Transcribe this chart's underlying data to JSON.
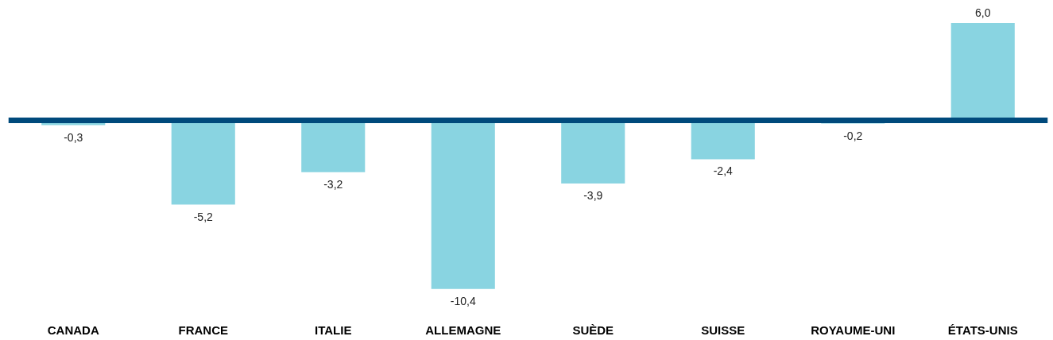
{
  "chart_data": {
    "type": "bar",
    "categories": [
      "CANADA",
      "FRANCE",
      "ITALIE",
      "ALLEMAGNE",
      "SUÈDE",
      "SUISSE",
      "ROYAUME-UNI",
      "ÉTATS-UNIS"
    ],
    "values": [
      -0.3,
      -5.2,
      -3.2,
      -10.4,
      -3.9,
      -2.4,
      -0.2,
      6.0
    ],
    "value_labels": [
      "-0,3",
      "-5,2",
      "-3,2",
      "-10,4",
      "-3,9",
      "-2,4",
      "-0,2",
      "6,0"
    ],
    "color": "#89d4e1",
    "tick_labels": "x",
    "grid": false,
    "ref_lines": [
      {
        "axis": "y",
        "value": 0,
        "label": null,
        "color": "#004a7c"
      }
    ]
  }
}
